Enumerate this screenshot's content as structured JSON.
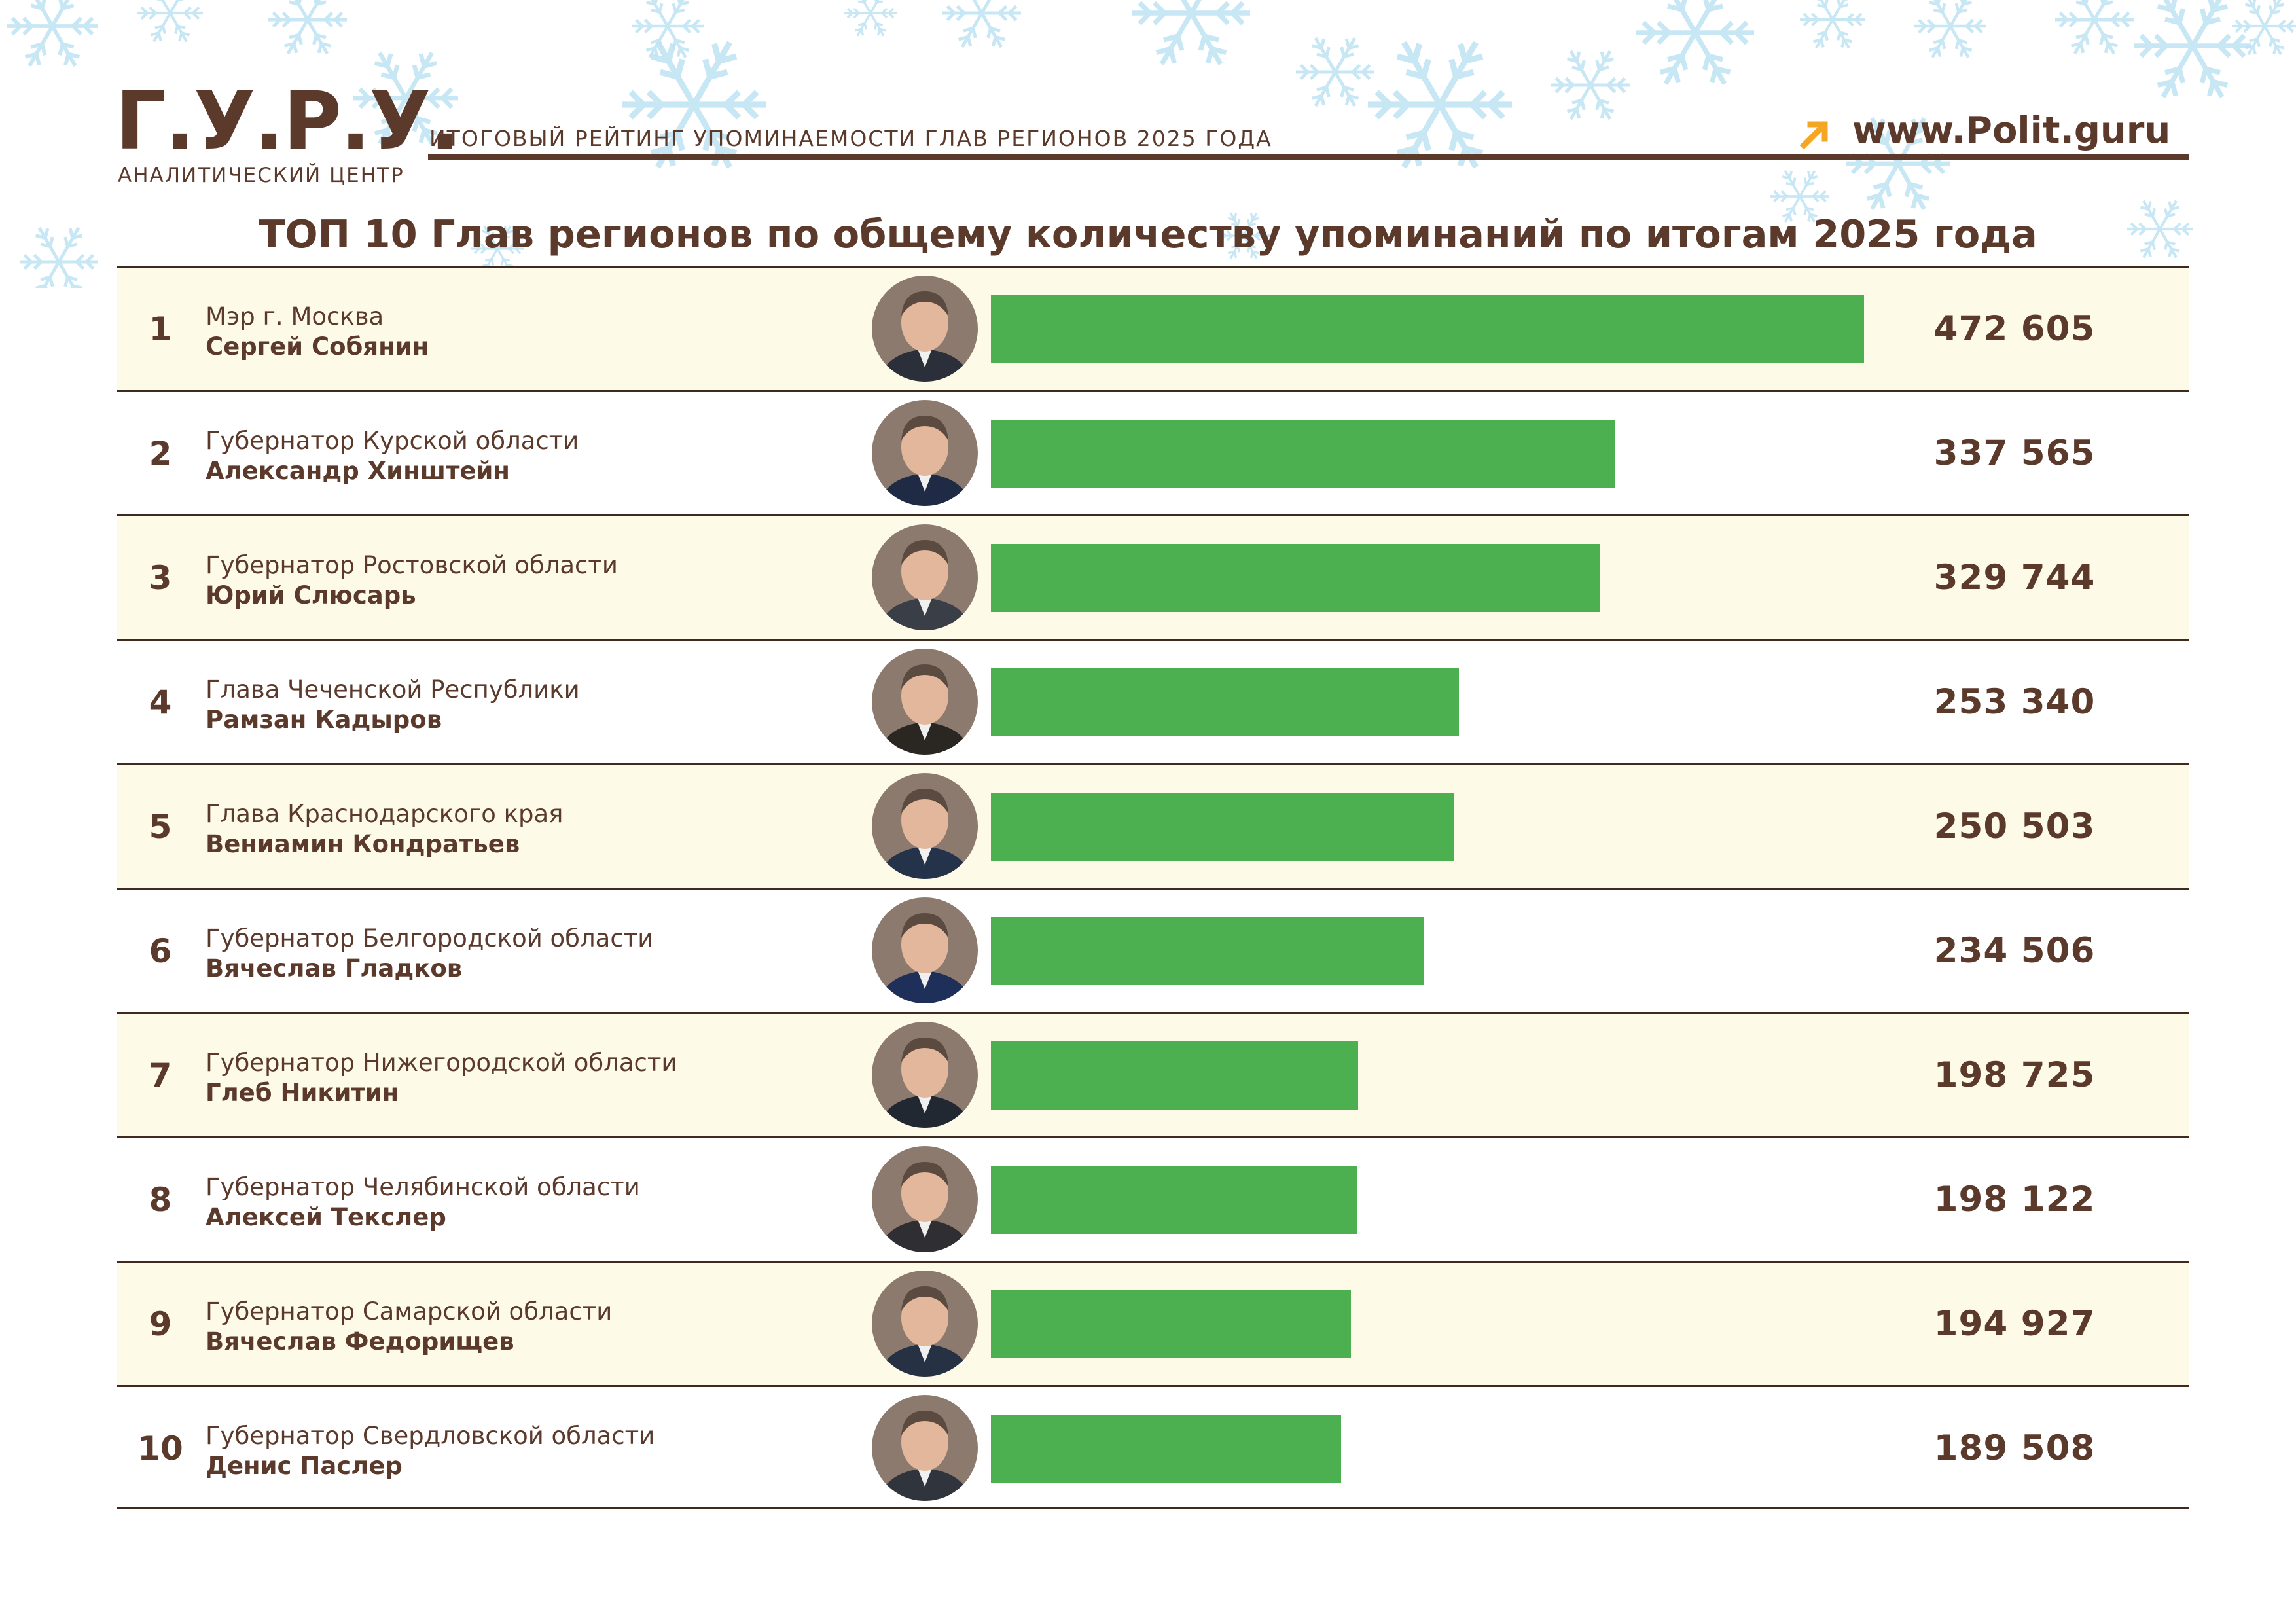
{
  "header": {
    "logo": "Г.У.Р.У.",
    "logo_subtitle": "АНАЛИТИЧЕСКИЙ ЦЕНТР",
    "tagline": "ИТОГОВЫЙ РЕЙТИНГ УПОМИНАЕМОСТИ ГЛАВ РЕГИОНОВ 2025 ГОДА",
    "website": "www.Polit.guru"
  },
  "colors": {
    "bar": "#4cb050",
    "text": "#5b3a2c",
    "accent_arrow": "#f5a623",
    "row_alt": "#fdfbe8",
    "snow": "#bfe3f3"
  },
  "chart_data": {
    "type": "bar",
    "orientation": "horizontal",
    "title": "ТОП 10 Глав регионов по общему количеству упоминаний по итогам 2025 года",
    "xlabel": "",
    "ylabel": "",
    "xlim": [
      0,
      472605
    ],
    "grid": false,
    "legend": "none",
    "rows": [
      {
        "rank": "1",
        "position": "Мэр г. Москва",
        "name": "Сергей Собянин",
        "value": 472605,
        "label": "472 605"
      },
      {
        "rank": "2",
        "position": "Губернатор Курской области",
        "name": "Александр Хинштейн",
        "value": 337565,
        "label": "337 565"
      },
      {
        "rank": "3",
        "position": "Губернатор Ростовской области",
        "name": "Юрий Слюсарь",
        "value": 329744,
        "label": "329 744"
      },
      {
        "rank": "4",
        "position": "Глава Чеченской Республики",
        "name": "Рамзан Кадыров",
        "value": 253340,
        "label": "253 340"
      },
      {
        "rank": "5",
        "position": "Глава Краснодарского края",
        "name": "Вениамин Кондратьев",
        "value": 250503,
        "label": "250 503"
      },
      {
        "rank": "6",
        "position": "Губернатор Белгородской области",
        "name": "Вячеслав Гладков",
        "value": 234506,
        "label": "234 506"
      },
      {
        "rank": "7",
        "position": "Губернатор Нижегородской области",
        "name": "Глеб Никитин",
        "value": 198725,
        "label": "198 725"
      },
      {
        "rank": "8",
        "position": "Губернатор Челябинской области",
        "name": "Алексей Текслер",
        "value": 198122,
        "label": "198 122"
      },
      {
        "rank": "9",
        "position": "Губернатор Самарской области",
        "name": "Вячеслав Федорищев",
        "value": 194927,
        "label": "194 927"
      },
      {
        "rank": "10",
        "position": "Губернатор Свердловской области",
        "name": "Денис Паслер",
        "value": 189508,
        "label": "189 508"
      }
    ]
  }
}
